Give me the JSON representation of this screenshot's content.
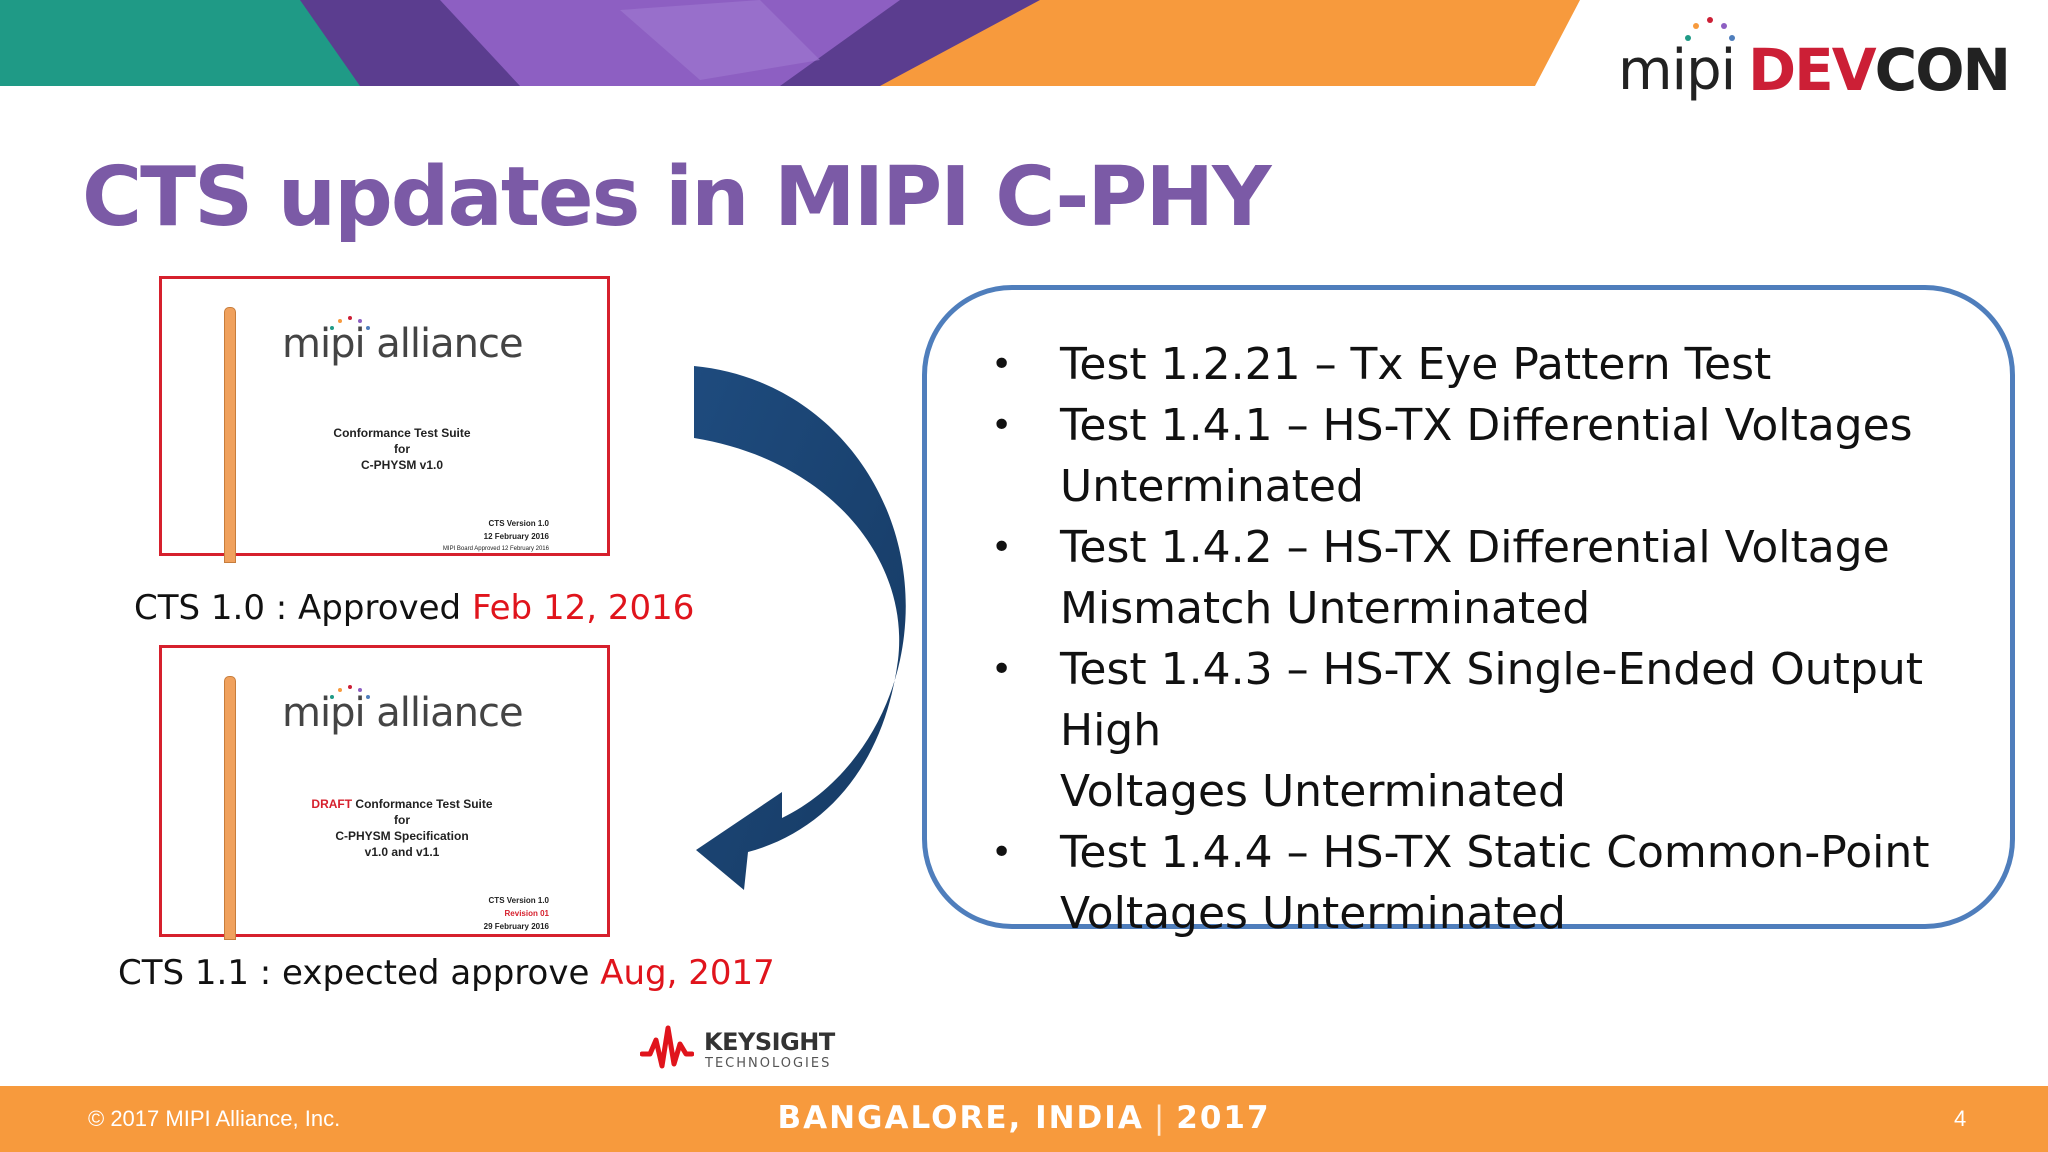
{
  "header": {
    "brand_mipi": "mipi",
    "brand_dev": "DEV",
    "brand_con": "CON",
    "banner_colors": [
      "#1f9a86",
      "#5b3d8f",
      "#8d5fc2",
      "#f79a3d"
    ]
  },
  "slide": {
    "title": "CTS updates in MIPI C-PHY"
  },
  "doc1": {
    "logo": "mipi alliance",
    "line1": "Conformance Test Suite",
    "line2": "for",
    "line3": "C-PHYSM v1.0",
    "ver1": "CTS Version 1.0",
    "ver2": "12 February 2016",
    "ver3": "MIPI Board Approved 12 February 2016",
    "caption_label": "CTS 1.0 : Approved ",
    "caption_date": "Feb 12, 2016"
  },
  "doc2": {
    "logo": "mipi alliance",
    "draft": "DRAFT",
    "line1": " Conformance Test Suite",
    "line2": "for",
    "line3": "C-PHYSM Specification",
    "line4": "v1.0 and v1.1",
    "ver1": "CTS Version 1.0",
    "ver2": "Revision 01",
    "ver3": "29 February 2016",
    "caption_label": "CTS 1.1 : expected approve ",
    "caption_date": "Aug, 2017"
  },
  "tests": {
    "bullet": "•",
    "items": [
      {
        "line1": "Test 1.2.21 – Tx Eye Pattern Test"
      },
      {
        "line1": "Test 1.4.1 – HS-TX Differential Voltages",
        "line2": "Unterminated"
      },
      {
        "line1": "Test 1.4.2 – HS-TX Differential Voltage",
        "line2": "Mismatch Unterminated"
      },
      {
        "line1": "Test 1.4.3 – HS-TX Single-Ended Output High",
        "line2": "Voltages Unterminated"
      },
      {
        "line1": "Test 1.4.4 – HS-TX Static Common-Point",
        "line2": "Voltages Unterminated"
      }
    ]
  },
  "sponsor": {
    "name": "KEYSIGHT",
    "sub": "TECHNOLOGIES"
  },
  "footer": {
    "copyright": "© 2017 MIPI Alliance, Inc.",
    "city": "BANGALORE, INDIA",
    "separator": "|",
    "year": "2017",
    "page_number": "4"
  }
}
